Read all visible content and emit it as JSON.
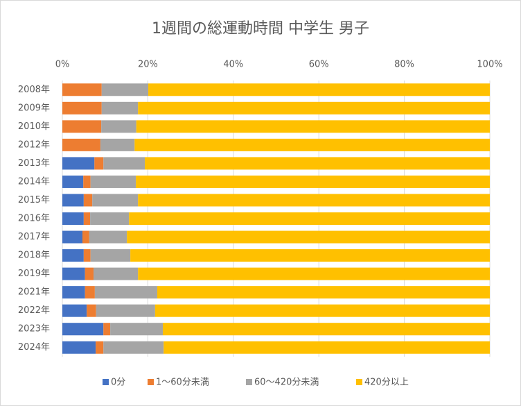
{
  "chart_data": {
    "type": "bar",
    "orientation": "horizontal",
    "stacked": true,
    "title": "1週間の総運動時間 中学生 男子",
    "categories": [
      "2008年",
      "2009年",
      "2010年",
      "2012年",
      "2013年",
      "2014年",
      "2015年",
      "2016年",
      "2017年",
      "2018年",
      "2019年",
      "2021年",
      "2022年",
      "2023年",
      "2024年"
    ],
    "series": [
      {
        "name": "0分",
        "color": "#4472c4",
        "values": [
          0,
          0,
          0,
          0,
          7.5,
          4.9,
          5.0,
          5.0,
          4.7,
          5.0,
          5.3,
          5.3,
          5.7,
          9.6,
          7.8
        ]
      },
      {
        "name": "1～60分未満",
        "color": "#ed7d31",
        "values": [
          9.2,
          9.2,
          9.1,
          8.9,
          2.1,
          1.7,
          2.0,
          1.5,
          1.6,
          1.6,
          2.0,
          2.3,
          2.2,
          1.6,
          1.8
        ]
      },
      {
        "name": "60～420分未満",
        "color": "#a5a5a5",
        "values": [
          10.9,
          8.5,
          8.2,
          8.0,
          9.7,
          10.6,
          10.7,
          9.1,
          8.8,
          9.3,
          10.4,
          14.6,
          13.8,
          12.3,
          14.1
        ]
      },
      {
        "name": "420分以上",
        "color": "#ffc000",
        "values": [
          79.9,
          82.3,
          82.7,
          83.1,
          80.7,
          82.8,
          82.3,
          84.4,
          84.9,
          84.1,
          82.3,
          77.8,
          78.3,
          76.5,
          76.3
        ]
      }
    ],
    "xlim": [
      0,
      100
    ],
    "xticks": [
      {
        "value": 0,
        "label": "0%"
      },
      {
        "value": 20,
        "label": "20%"
      },
      {
        "value": 40,
        "label": "40%"
      },
      {
        "value": 60,
        "label": "60%"
      },
      {
        "value": 80,
        "label": "80%"
      },
      {
        "value": 100,
        "label": "100%"
      }
    ],
    "grid": true,
    "legend": "bottom"
  }
}
